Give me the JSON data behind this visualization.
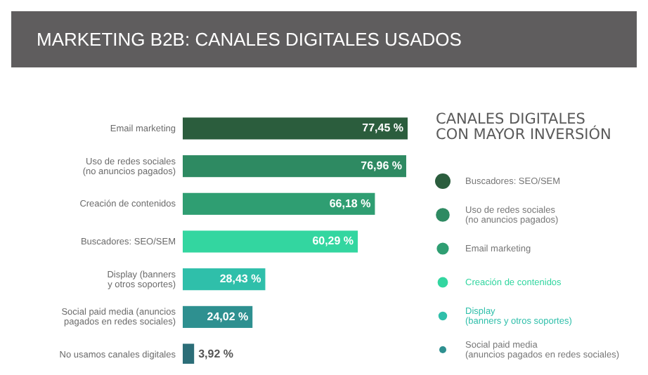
{
  "chart_data": [
    {
      "type": "bar",
      "orientation": "horizontal",
      "title": "MARKETING B2B: CANALES DIGITALES USADOS",
      "categories": [
        "Email marketing",
        "Uso de redes sociales\n(no anuncios pagados)",
        "Creación de contenidos",
        "Buscadores: SEO/SEM",
        "Display (banners\ny otros soportes)",
        "Social paid media (anuncios\npagados en redes sociales)",
        "No usamos canales digitales"
      ],
      "values": [
        77.45,
        76.96,
        66.18,
        60.29,
        28.43,
        24.02,
        3.92
      ],
      "colors": [
        "#2b5d3d",
        "#2e8a62",
        "#2f9e72",
        "#33d6a0",
        "#2fbfaa",
        "#2e9090",
        "#2c6e78"
      ],
      "value_labels": [
        "77,45 %",
        "76,96 %",
        "66,18 %",
        "60,29 %",
        "28,43 %",
        "24,02 %",
        "3,92 %"
      ]
    },
    {
      "type": "other",
      "title": "CANALES DIGITALES\nCON MAYOR INVERSIÓN",
      "categories": [
        "Buscadores: SEO/SEM",
        "Uso de redes sociales\n(no anuncios pagados)",
        "Email marketing",
        "Creación de contenidos",
        "Display\n(banners y otros soportes)",
        "Social paid media\n(anuncios pagados en redes sociales)"
      ],
      "colors": [
        "#2b5d3d",
        "#2e8a62",
        "#2f9e72",
        "#33d6a0",
        "#2fbfaa",
        "#2e9090"
      ]
    }
  ]
}
